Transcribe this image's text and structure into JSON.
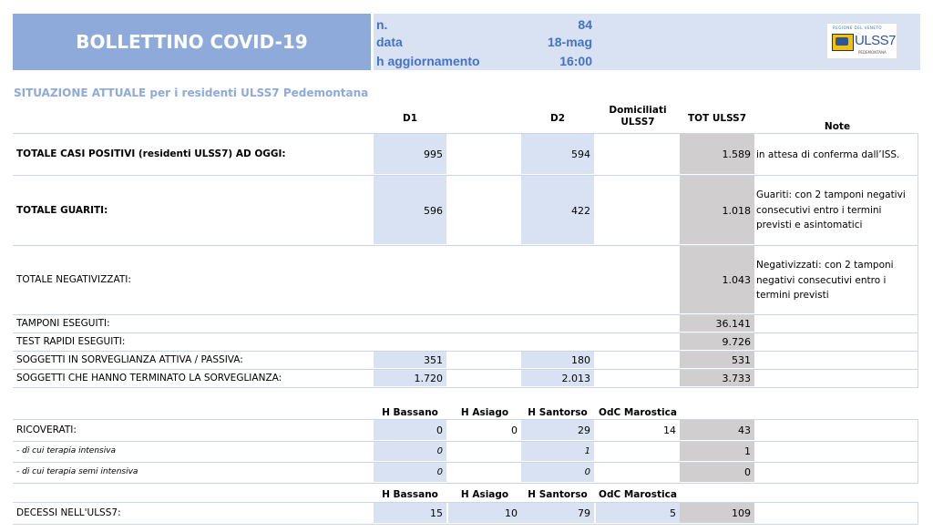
{
  "header": {
    "title": "BOLLETTINO COVID-19",
    "n_label": "n.",
    "n_value": "84",
    "data_label": "data",
    "data_value": "18-mag",
    "agg_label": "h aggiornamento",
    "agg_value": "16:00",
    "logo": {
      "small_text": "REGIONE DEL VENETO",
      "name": "ULSS7",
      "sub_text": "PEDEMONTANA"
    }
  },
  "subtitle": "SITUAZIONE ATTUALE per i residenti ULSS7 Pedemontana",
  "columns": {
    "d1": "D1",
    "d2": "D2",
    "domiciliati_line1": "Domiciliati",
    "domiciliati_line2": "ULSS7",
    "tot": "TOT ULSS7",
    "note": "Note"
  },
  "rows": {
    "positivi": {
      "label": "TOTALE CASI POSITIVI (residenti ULSS7) AD OGGI:",
      "d1": "995",
      "d2": "594",
      "tot": "1.589",
      "note": "in attesa di conferma dall’ISS."
    },
    "guariti": {
      "label": "TOTALE GUARITI:",
      "d1": "596",
      "d2": "422",
      "tot": "1.018",
      "note": "Guariti: con 2 tamponi negativi consecutivi entro i termini previsti e asintomatici"
    },
    "negativizzati": {
      "label": "TOTALE NEGATIVIZZATI:",
      "tot": "1.043",
      "note": "Negativizzati: con 2 tamponi negativi consecutivi entro i termini previsti"
    },
    "tamponi": {
      "label": "TAMPONI ESEGUITI:",
      "tot": "36.141"
    },
    "test_rapidi": {
      "label": "TEST RAPIDI ESEGUITI:",
      "tot": "9.726"
    },
    "sorveglianza": {
      "label": "SOGGETTI IN SORVEGLIANZA ATTIVA / PASSIVA:",
      "d1": "351",
      "d2": "180",
      "tot": "531"
    },
    "terminato": {
      "label": "SOGGETTI CHE HANNO TERMINATO LA SORVEGLIANZA:",
      "d1": "1.720",
      "d2": "2.013",
      "tot": "3.733"
    }
  },
  "hospital_columns": {
    "bassano": "H Bassano",
    "asiago": "H Asiago",
    "santorso": "H Santorso",
    "marostica": "OdC Marostica"
  },
  "ricoverati": {
    "label": "RICOVERATI:",
    "bassano": "0",
    "asiago": "0",
    "santorso": "29",
    "marostica": "14",
    "tot": "43"
  },
  "terapia_intensiva": {
    "label": "- di cui terapia intensiva",
    "bassano": "0",
    "santorso": "1",
    "tot": "1"
  },
  "semi_intensiva": {
    "label": "- di cui terapia semi intensiva",
    "bassano": "0",
    "santorso": "0",
    "tot": "0"
  },
  "decessi": {
    "label": "DECESSI NELL'ULSS7:",
    "bassano": "15",
    "asiago": "10",
    "santorso": "79",
    "marostica": "5",
    "tot": "109"
  }
}
